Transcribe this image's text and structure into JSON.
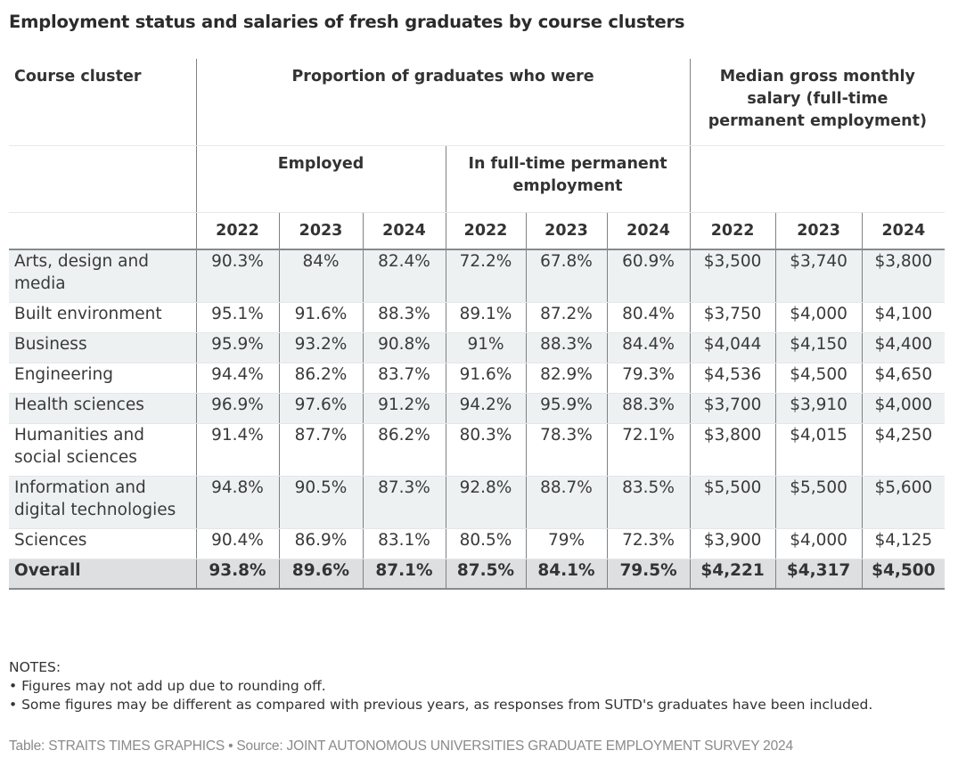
{
  "title": "Employment status and salaries of fresh graduates by course clusters",
  "header": {
    "course_cluster": "Course cluster",
    "proportion_group": "Proportion of graduates who were",
    "salary_group": "Median gross monthly salary (full-time permanent employment)",
    "employed": "Employed",
    "fulltime": "In full-time permanent employment",
    "years": [
      "2022",
      "2023",
      "2024",
      "2022",
      "2023",
      "2024",
      "2022",
      "2023",
      "2024"
    ]
  },
  "rows": [
    {
      "course": "Arts, design and media",
      "values": [
        "90.3%",
        "84%",
        "82.4%",
        "72.2%",
        "67.8%",
        "60.9%",
        "$3,500",
        "$3,740",
        "$3,800"
      ]
    },
    {
      "course": "Built environment",
      "values": [
        "95.1%",
        "91.6%",
        "88.3%",
        "89.1%",
        "87.2%",
        "80.4%",
        "$3,750",
        "$4,000",
        "$4,100"
      ]
    },
    {
      "course": "Business",
      "values": [
        "95.9%",
        "93.2%",
        "90.8%",
        "91%",
        "88.3%",
        "84.4%",
        "$4,044",
        "$4,150",
        "$4,400"
      ]
    },
    {
      "course": "Engineering",
      "values": [
        "94.4%",
        "86.2%",
        "83.7%",
        "91.6%",
        "82.9%",
        "79.3%",
        "$4,536",
        "$4,500",
        "$4,650"
      ]
    },
    {
      "course": "Health sciences",
      "values": [
        "96.9%",
        "97.6%",
        "91.2%",
        "94.2%",
        "95.9%",
        "88.3%",
        "$3,700",
        "$3,910",
        "$4,000"
      ]
    },
    {
      "course": "Humanities and social sciences",
      "values": [
        "91.4%",
        "87.7%",
        "86.2%",
        "80.3%",
        "78.3%",
        "72.1%",
        "$3,800",
        "$4,015",
        "$4,250"
      ]
    },
    {
      "course": "Information and digital technologies",
      "values": [
        "94.8%",
        "90.5%",
        "87.3%",
        "92.8%",
        "88.7%",
        "83.5%",
        "$5,500",
        "$5,500",
        "$5,600"
      ]
    },
    {
      "course": "Sciences",
      "values": [
        "90.4%",
        "86.9%",
        "83.1%",
        "80.5%",
        "79%",
        "72.3%",
        "$3,900",
        "$4,000",
        "$4,125"
      ]
    }
  ],
  "overall": {
    "course": "Overall",
    "values": [
      "93.8%",
      "89.6%",
      "87.1%",
      "87.5%",
      "84.1%",
      "79.5%",
      "$4,221",
      "$4,317",
      "$4,500"
    ]
  },
  "notes": {
    "heading": "NOTES:",
    "items": [
      "• Figures may not add up due to rounding off.",
      "• Some figures may be different as compared with previous years, as responses from SUTD's graduates have been included."
    ]
  },
  "credit": "Table: STRAITS TIMES GRAPHICS • Source: JOINT AUTONOMOUS UNIVERSITIES GRADUATE EMPLOYMENT SURVEY 2024",
  "colors": {
    "row_alt_bg": "#eef1f2",
    "overall_bg": "#dedfe0",
    "text": "#333333",
    "credit_text": "#8a8a8a"
  },
  "chart_data": {
    "type": "table",
    "title": "Employment status and salaries of fresh graduates by course clusters",
    "columns": [
      "Course cluster",
      "Employed 2022",
      "Employed 2023",
      "Employed 2024",
      "Full-time permanent 2022",
      "Full-time permanent 2023",
      "Full-time permanent 2024",
      "Median salary 2022",
      "Median salary 2023",
      "Median salary 2024"
    ],
    "series": [
      {
        "name": "Employed (%)",
        "years": [
          2022,
          2023,
          2024
        ],
        "values": {
          "Arts, design and media": [
            90.3,
            84,
            82.4
          ],
          "Built environment": [
            95.1,
            91.6,
            88.3
          ],
          "Business": [
            95.9,
            93.2,
            90.8
          ],
          "Engineering": [
            94.4,
            86.2,
            83.7
          ],
          "Health sciences": [
            96.9,
            97.6,
            91.2
          ],
          "Humanities and social sciences": [
            91.4,
            87.7,
            86.2
          ],
          "Information and digital technologies": [
            94.8,
            90.5,
            87.3
          ],
          "Sciences": [
            90.4,
            86.9,
            83.1
          ],
          "Overall": [
            93.8,
            89.6,
            87.1
          ]
        }
      },
      {
        "name": "In full-time permanent employment (%)",
        "years": [
          2022,
          2023,
          2024
        ],
        "values": {
          "Arts, design and media": [
            72.2,
            67.8,
            60.9
          ],
          "Built environment": [
            89.1,
            87.2,
            80.4
          ],
          "Business": [
            91,
            88.3,
            84.4
          ],
          "Engineering": [
            91.6,
            82.9,
            79.3
          ],
          "Health sciences": [
            94.2,
            95.9,
            88.3
          ],
          "Humanities and social sciences": [
            80.3,
            78.3,
            72.1
          ],
          "Information and digital technologies": [
            92.8,
            88.7,
            83.5
          ],
          "Sciences": [
            80.5,
            79,
            72.3
          ],
          "Overall": [
            87.5,
            84.1,
            79.5
          ]
        }
      },
      {
        "name": "Median gross monthly salary ($)",
        "years": [
          2022,
          2023,
          2024
        ],
        "values": {
          "Arts, design and media": [
            3500,
            3740,
            3800
          ],
          "Built environment": [
            3750,
            4000,
            4100
          ],
          "Business": [
            4044,
            4150,
            4400
          ],
          "Engineering": [
            4536,
            4500,
            4650
          ],
          "Health sciences": [
            3700,
            3910,
            4000
          ],
          "Humanities and social sciences": [
            3800,
            4015,
            4250
          ],
          "Information and digital technologies": [
            5500,
            5500,
            5600
          ],
          "Sciences": [
            3900,
            4000,
            4125
          ],
          "Overall": [
            4221,
            4317,
            4500
          ]
        }
      }
    ]
  }
}
